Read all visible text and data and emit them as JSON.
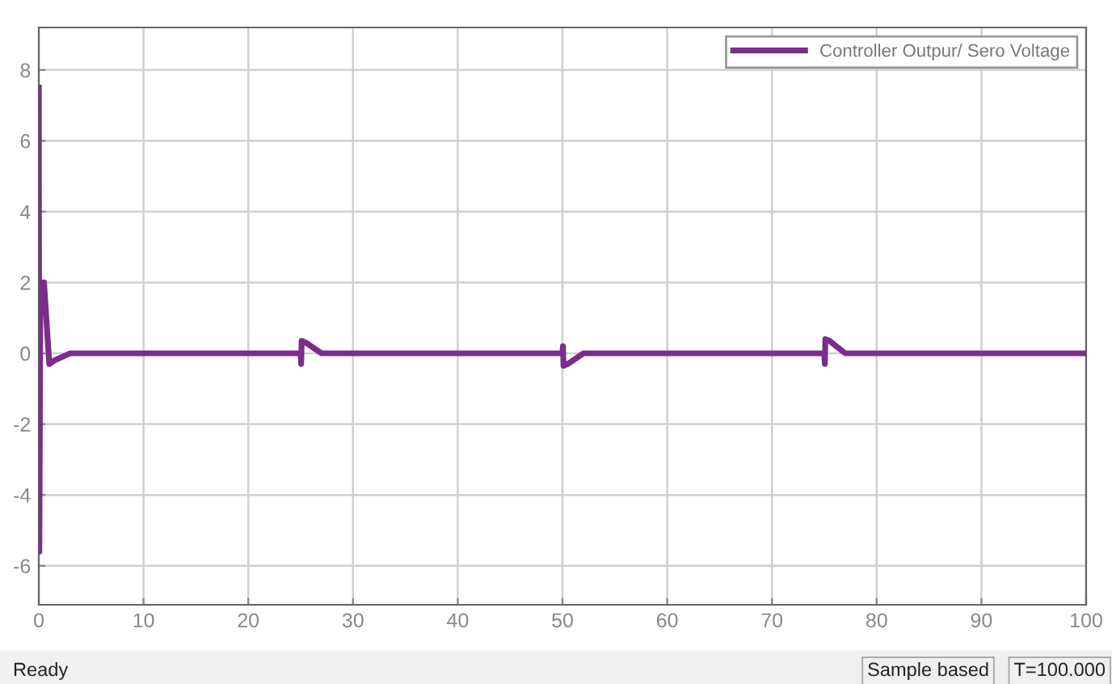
{
  "chart_data": {
    "type": "line",
    "x": [
      0,
      0.05,
      0.15,
      0.5,
      1.0,
      1.5,
      3,
      25,
      25.05,
      25.1,
      25.5,
      27,
      50,
      50.05,
      50.1,
      50.5,
      52,
      75,
      75.05,
      75.1,
      75.5,
      77,
      100
    ],
    "series": [
      {
        "name": "Controller Outpur/ Sero Voltage",
        "color": "#7b2d8b",
        "values": [
          7.5,
          -5.6,
          2,
          2,
          -0.3,
          -0.2,
          0,
          0,
          -0.3,
          0.35,
          0.3,
          0,
          0,
          0.2,
          -0.35,
          -0.3,
          0,
          0,
          -0.3,
          0.4,
          0.35,
          0,
          0
        ]
      }
    ],
    "xlim": [
      0,
      100
    ],
    "xticks": [
      0,
      10,
      20,
      30,
      40,
      50,
      60,
      70,
      80,
      90,
      100
    ],
    "ylim": [
      -7.1,
      9.2
    ],
    "yticks": [
      -6,
      -4,
      -2,
      0,
      2,
      4,
      6,
      8
    ],
    "grid": true,
    "legend": "top right",
    "annotations": [
      "Ready",
      "Sample based",
      "T=100.000"
    ]
  }
}
